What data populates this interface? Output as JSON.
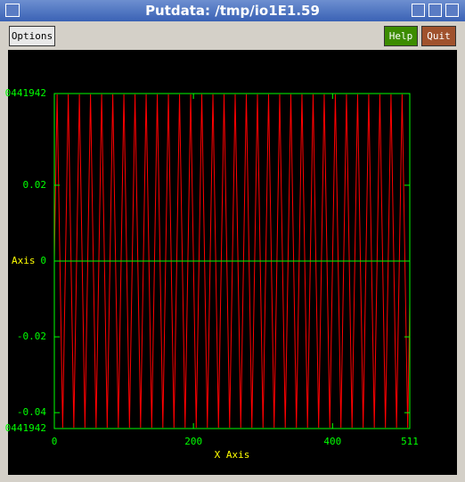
{
  "window": {
    "title": "Putdata: /tmp/io1E1.59",
    "buttons": [
      "Options",
      "Help",
      "Quit"
    ]
  },
  "chart_data": {
    "type": "line",
    "xlabel": "X Axis",
    "ylabel": "Axis",
    "x": [
      0,
      4,
      12,
      20,
      28,
      36,
      44,
      52,
      60,
      68,
      76,
      84,
      92,
      100,
      108,
      116,
      124,
      132,
      140,
      148,
      156,
      164,
      172,
      180,
      188,
      196,
      204,
      212,
      220,
      228,
      236,
      244,
      252,
      260,
      268,
      276,
      284,
      292,
      300,
      308,
      316,
      324,
      332,
      340,
      348,
      356,
      364,
      372,
      380,
      388,
      396,
      404,
      412,
      420,
      428,
      436,
      444,
      452,
      460,
      468,
      476,
      484,
      492,
      500,
      508,
      511
    ],
    "series": [
      {
        "color": "#ff0000",
        "values": [
          0,
          0.044,
          -0.044,
          0.044,
          -0.044,
          0.044,
          -0.044,
          0.044,
          -0.044,
          0.044,
          -0.044,
          0.044,
          -0.044,
          0.044,
          -0.044,
          0.044,
          -0.044,
          0.044,
          -0.044,
          0.044,
          -0.044,
          0.044,
          -0.044,
          0.044,
          -0.044,
          0.044,
          -0.044,
          0.044,
          -0.044,
          0.044,
          -0.044,
          0.044,
          -0.044,
          0.044,
          -0.044,
          0.044,
          -0.044,
          0.044,
          -0.044,
          0.044,
          -0.044,
          0.044,
          -0.044,
          0.044,
          -0.044,
          0.044,
          -0.044,
          0.044,
          -0.044,
          0.044,
          -0.044,
          0.044,
          -0.044,
          0.044,
          -0.044,
          0.044,
          -0.044,
          0.044,
          -0.044,
          0.044,
          -0.044,
          0.044,
          -0.044,
          0.044,
          -0.044,
          -0.011
        ]
      }
    ],
    "xlim": [
      0,
      511
    ],
    "xticks": [
      0,
      200,
      400,
      511
    ],
    "ylim": [
      -0.0441942,
      0.0441942
    ],
    "yticks": [
      {
        "value": 0.0441942,
        "label": "0441942"
      },
      0.02,
      0,
      -0.02,
      -0.04,
      {
        "value": -0.0441942,
        "label": "0441942"
      }
    ],
    "axis_color": "#00ff00",
    "label_color": "#ffff00"
  }
}
